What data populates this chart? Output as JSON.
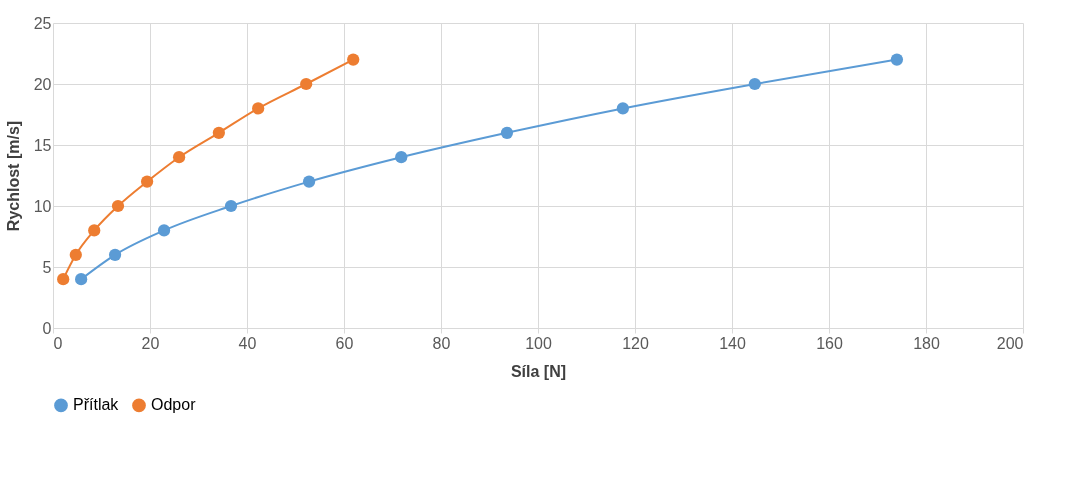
{
  "chart_data": {
    "type": "line",
    "xlabel": "Síla [N]",
    "ylabel": "Rychlost [m/s]",
    "xlim": [
      0,
      200
    ],
    "xticks": [
      0,
      20,
      40,
      60,
      80,
      100,
      120,
      140,
      160,
      180,
      200
    ],
    "ylim": [
      0,
      25
    ],
    "yticks": [
      0,
      5,
      10,
      15,
      20,
      25
    ],
    "grid": true,
    "legend": "bottom",
    "marker": "circle",
    "line_style": "solid",
    "series": [
      {
        "name": "Přítlak",
        "color": "#5b9bd5",
        "x": [
          5.8,
          12.8,
          22.9,
          36.7,
          52.8,
          71.8,
          93.6,
          117.5,
          144.7,
          174
        ],
        "values": [
          4,
          6,
          8,
          10,
          12,
          14,
          16,
          18,
          20,
          22
        ]
      },
      {
        "name": "Odpor",
        "color": "#ed7d31",
        "x": [
          2.1,
          4.7,
          8.5,
          13.4,
          19.4,
          26,
          34.2,
          42.3,
          52.2,
          61.9
        ],
        "values": [
          4,
          6,
          8,
          10,
          12,
          14,
          16,
          18,
          20,
          22
        ]
      }
    ]
  }
}
